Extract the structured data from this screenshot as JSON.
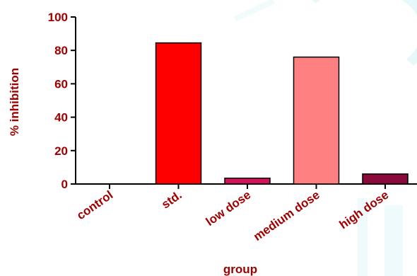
{
  "chart_data": {
    "type": "bar",
    "categories": [
      "control",
      "std.",
      "low dose",
      "medium dose",
      "high dose"
    ],
    "values": [
      0,
      84.5,
      3.5,
      76,
      6
    ],
    "colors": [
      "#ffffff",
      "#ff0000",
      "#d1145a",
      "#ff8080",
      "#8b0a3c"
    ],
    "ylabel": "% inhibition",
    "xlabel": "group",
    "ylim": [
      0,
      100
    ],
    "yticks": [
      0,
      20,
      40,
      60,
      80,
      100
    ],
    "grid": false,
    "text_color": "#a00000"
  }
}
